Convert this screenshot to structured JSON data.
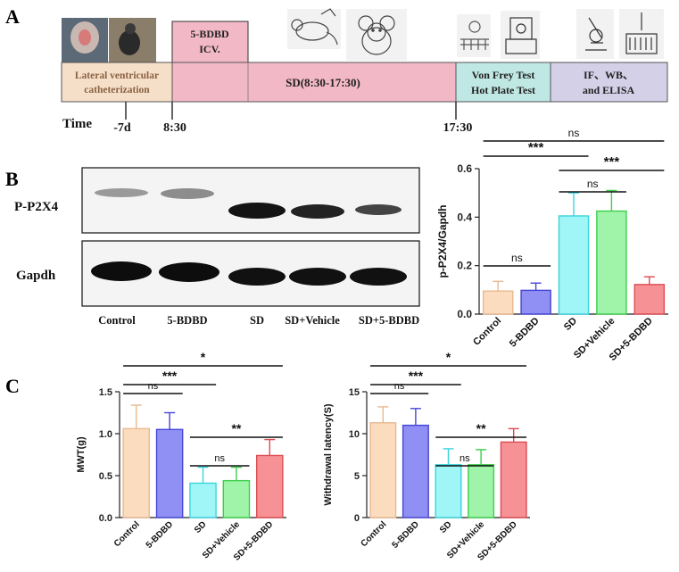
{
  "panels": {
    "a": "A",
    "b": "B",
    "c": "C"
  },
  "timeline": {
    "stages": {
      "catheter_line1": "Lateral ventricular",
      "catheter_line2": "catheterization",
      "icv_line1": "5-BDBD",
      "icv_line2": "ICV.",
      "sd": "SD(8:30-17:30)",
      "tests_line1": "Von Frey Test",
      "tests_line2": "Hot Plate Test",
      "assays_line1": "IF、WB、",
      "assays_line2": "and ELISA"
    },
    "time_label": "Time",
    "time_points": [
      "-7d",
      "8:30",
      "17:30"
    ],
    "colors": {
      "catheter": "#f6dfc8",
      "icv": "#f2b8c6",
      "sd": "#f2b8c6",
      "tests": "#bfe7e3",
      "assays": "#d4d0e8"
    }
  },
  "blot": {
    "rows": [
      "P-P2X4",
      "Gapdh"
    ],
    "lanes": [
      "Control",
      "5-BDBD",
      "SD",
      "SD+Vehicle",
      "SD+5-BDBD"
    ]
  },
  "chart_data": [
    {
      "type": "bar",
      "ylabel": "p-P2X4/Gapdh",
      "categories": [
        "Control",
        "5-BDBD",
        "SD",
        "SD+Vehicle",
        "SD+5-BDBD"
      ],
      "values": [
        0.095,
        0.098,
        0.405,
        0.425,
        0.122
      ],
      "errors": [
        0.04,
        0.03,
        0.095,
        0.085,
        0.032
      ],
      "ylim": [
        0,
        0.6
      ],
      "yticks": [
        "0.0",
        "0.2",
        "0.4",
        "0.6"
      ],
      "tick_values": [
        0,
        0.2,
        0.4,
        0.6
      ],
      "colors": [
        "#fbd6b3",
        "#7c7cf2",
        "#8ff3f6",
        "#8ff29a",
        "#f47f84"
      ],
      "edge_colors": [
        "#e9b98f",
        "#4545d6",
        "#39d5dd",
        "#3ccf4b",
        "#dd4b52"
      ],
      "significance": [
        {
          "from": 0,
          "to": 1,
          "label": "ns"
        },
        {
          "from": 2,
          "to": 3,
          "label": "ns"
        },
        {
          "from": 2,
          "to": 4,
          "label": "***"
        },
        {
          "from": 0,
          "to": 2,
          "label": "***"
        },
        {
          "from": 0,
          "to": 4,
          "label": "ns"
        }
      ]
    },
    {
      "type": "bar",
      "ylabel": "MWT(g)",
      "categories": [
        "Control",
        "5-BDBD",
        "SD",
        "SD+Vehicle",
        "SD+5-BDBD"
      ],
      "values": [
        1.06,
        1.05,
        0.41,
        0.44,
        0.74
      ],
      "errors": [
        0.28,
        0.2,
        0.19,
        0.16,
        0.19
      ],
      "ylim": [
        0,
        1.5
      ],
      "yticks": [
        "0.0",
        "0.5",
        "1.0",
        "1.5"
      ],
      "tick_values": [
        0,
        0.5,
        1.0,
        1.5
      ],
      "colors": [
        "#fbd6b3",
        "#7c7cf2",
        "#8ff3f6",
        "#8ff29a",
        "#f47f84"
      ],
      "edge_colors": [
        "#e9b98f",
        "#4545d6",
        "#39d5dd",
        "#3ccf4b",
        "#dd4b52"
      ],
      "significance": [
        {
          "from": 2,
          "to": 3,
          "label": "ns"
        },
        {
          "from": 2,
          "to": 4,
          "label": "**"
        },
        {
          "from": 0,
          "to": 1,
          "label": "ns"
        },
        {
          "from": 0,
          "to": 2,
          "label": "***"
        },
        {
          "from": 0,
          "to": 4,
          "label": "*"
        }
      ]
    },
    {
      "type": "bar",
      "ylabel": "Withdrawal latency(S)",
      "categories": [
        "Control",
        "5-BDBD",
        "SD",
        "SD+Vehicle",
        "SD+5-BDBD"
      ],
      "values": [
        11.3,
        11.0,
        6.3,
        6.3,
        9.0
      ],
      "errors": [
        1.9,
        2.0,
        1.9,
        1.8,
        1.6
      ],
      "ylim": [
        0,
        15
      ],
      "yticks": [
        "0",
        "5",
        "10",
        "15"
      ],
      "tick_values": [
        0,
        5,
        10,
        15
      ],
      "colors": [
        "#fbd6b3",
        "#7c7cf2",
        "#8ff3f6",
        "#8ff29a",
        "#f47f84"
      ],
      "edge_colors": [
        "#e9b98f",
        "#4545d6",
        "#39d5dd",
        "#3ccf4b",
        "#dd4b52"
      ],
      "significance": [
        {
          "from": 2,
          "to": 3,
          "label": "ns"
        },
        {
          "from": 2,
          "to": 4,
          "label": "**"
        },
        {
          "from": 0,
          "to": 1,
          "label": "ns"
        },
        {
          "from": 0,
          "to": 2,
          "label": "***"
        },
        {
          "from": 0,
          "to": 4,
          "label": "*"
        }
      ]
    }
  ]
}
